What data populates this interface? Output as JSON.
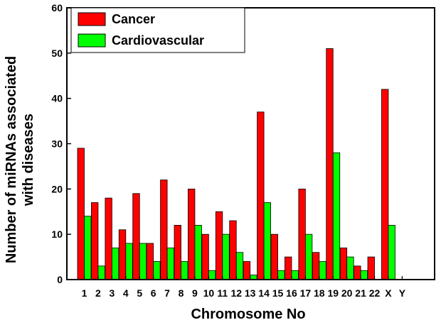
{
  "chart_data": {
    "type": "bar",
    "xlabel": "Chromosome No",
    "ylabel": [
      "Number of miRNAs associated",
      "with diseases"
    ],
    "ylim": [
      0,
      60
    ],
    "yticks": [
      0,
      10,
      20,
      30,
      40,
      50,
      60
    ],
    "categories": [
      "1",
      "2",
      "3",
      "4",
      "5",
      "6",
      "7",
      "8",
      "9",
      "10",
      "11",
      "12",
      "13",
      "14",
      "15",
      "16",
      "17",
      "18",
      "19",
      "20",
      "21",
      "22",
      "X",
      "Y"
    ],
    "series": [
      {
        "name": "Cancer",
        "color": "#ff0000",
        "values": [
          29,
          17,
          18,
          11,
          19,
          8,
          22,
          12,
          20,
          10,
          15,
          13,
          4,
          37,
          10,
          5,
          20,
          6,
          51,
          7,
          3,
          5,
          42,
          0
        ]
      },
      {
        "name": "Cardiovascular",
        "color": "#00ff00",
        "values": [
          14,
          3,
          7,
          8,
          8,
          4,
          7,
          4,
          12,
          2,
          10,
          6,
          1,
          17,
          2,
          2,
          10,
          4,
          28,
          5,
          2,
          0,
          12,
          0
        ]
      }
    ],
    "legend_position": "top-left",
    "grid": false
  }
}
